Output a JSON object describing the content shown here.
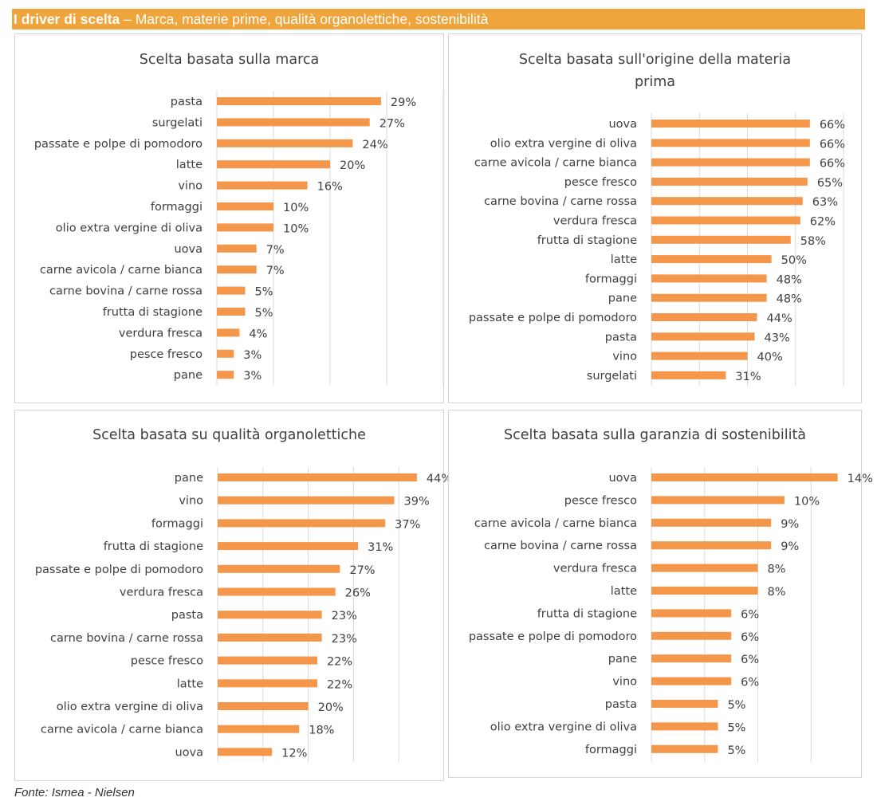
{
  "header": {
    "title_bold": "I driver di scelta",
    "title_rest": " – Marca, materie prime, qualità organolettiche, sostenibilità"
  },
  "source": "Fonte: Ismea - Nielsen",
  "colors": {
    "bar": "#f4974a",
    "header": "#f0a43c",
    "grid": "#d9d9d9",
    "text": "#404040"
  },
  "chart_data": [
    {
      "type": "bar",
      "orientation": "horizontal",
      "title": "Scelta basata sulla marca",
      "categories": [
        "pasta",
        "surgelati",
        "passate e polpe di pomodoro",
        "latte",
        "vino",
        "formaggi",
        "olio extra vergine di oliva",
        "uova",
        "carne avicola / carne bianca",
        "carne bovina / carne rossa",
        "frutta di stagione",
        "verdura fresca",
        "pesce fresco",
        "pane"
      ],
      "values": [
        29,
        27,
        24,
        20,
        16,
        10,
        10,
        7,
        7,
        5,
        5,
        4,
        3,
        3
      ],
      "labels": [
        "29%",
        "27%",
        "24%",
        "20%",
        "16%",
        "10%",
        "10%",
        "7%",
        "7%",
        "5%",
        "5%",
        "4%",
        "3%",
        "3%"
      ],
      "xlim": [
        0,
        40
      ],
      "grid_step": 10,
      "grid": true
    },
    {
      "type": "bar",
      "orientation": "horizontal",
      "title": "Scelta basata sull'origine della materia prima",
      "title_lines": [
        "Scelta basata sull'origine della materia",
        "prima"
      ],
      "categories": [
        "uova",
        "olio extra vergine di oliva",
        "carne avicola / carne bianca",
        "pesce fresco",
        "carne bovina / carne rossa",
        "verdura fresca",
        "frutta di stagione",
        "latte",
        "formaggi",
        "pane",
        "passate e polpe di pomodoro",
        "pasta",
        "vino",
        "surgelati"
      ],
      "values": [
        66,
        66,
        66,
        65,
        63,
        62,
        58,
        50,
        48,
        48,
        44,
        43,
        40,
        31
      ],
      "labels": [
        "66%",
        "66%",
        "66%",
        "65%",
        "63%",
        "62%",
        "58%",
        "50%",
        "48%",
        "48%",
        "44%",
        "43%",
        "40%",
        "31%"
      ],
      "xlim": [
        0,
        80
      ],
      "grid_step": 20,
      "grid": true
    },
    {
      "type": "bar",
      "orientation": "horizontal",
      "title": "Scelta basata su qualità organolettiche",
      "categories": [
        "pane",
        "vino",
        "formaggi",
        "frutta di stagione",
        "passate e polpe di pomodoro",
        "verdura fresca",
        "pasta",
        "carne bovina / carne rossa",
        "pesce fresco",
        "latte",
        "olio extra vergine di oliva",
        "carne avicola / carne bianca",
        "uova"
      ],
      "values": [
        44,
        39,
        37,
        31,
        27,
        26,
        23,
        23,
        22,
        22,
        20,
        18,
        12
      ],
      "labels": [
        "44%",
        "39%",
        "37%",
        "31%",
        "27%",
        "26%",
        "23%",
        "23%",
        "22%",
        "22%",
        "20%",
        "18%",
        "12%"
      ],
      "xlim": [
        0,
        50
      ],
      "grid_step": 10,
      "grid": true
    },
    {
      "type": "bar",
      "orientation": "horizontal",
      "title": "Scelta basata sulla garanzia di sostenibilità",
      "categories": [
        "uova",
        "pesce fresco",
        "carne avicola / carne bianca",
        "carne bovina / carne rossa",
        "verdura fresca",
        "latte",
        "frutta di stagione",
        "passate e polpe di pomodoro",
        "pane",
        "vino",
        "pasta",
        "olio extra vergine di oliva",
        "formaggi"
      ],
      "values": [
        14,
        10,
        9,
        9,
        8,
        8,
        6,
        6,
        6,
        6,
        5,
        5,
        5
      ],
      "labels": [
        "14%",
        "10%",
        "9%",
        "9%",
        "8%",
        "8%",
        "6%",
        "6%",
        "6%",
        "6%",
        "5%",
        "5%",
        "5%"
      ],
      "xlim": [
        0,
        16
      ],
      "grid_step": 4,
      "grid": true
    }
  ]
}
